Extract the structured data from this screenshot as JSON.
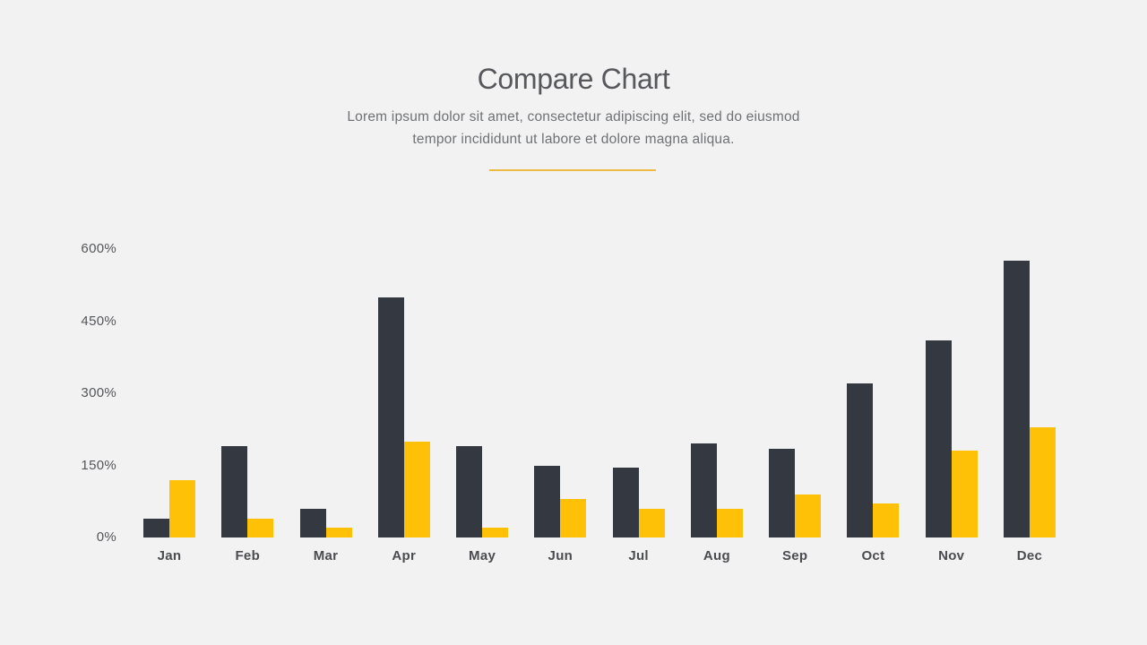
{
  "header": {
    "title": "Compare Chart",
    "subtitle_line1": "Lorem ipsum dolor sit amet, consectetur adipiscing elit, sed do eiusmod",
    "subtitle_line2": "tempor incididunt ut labore et dolore magna aliqua."
  },
  "colors": {
    "background": "#f2f2f3",
    "series1": "#343841",
    "series2": "#fec107",
    "divider": "#ecba45",
    "title_text": "#57585c",
    "subtitle_text": "#6f7174",
    "axis_text": "#55565a",
    "month_text": "#4b4c50"
  },
  "chart_data": {
    "type": "bar",
    "title": "Compare Chart",
    "xlabel": "",
    "ylabel": "",
    "categories": [
      "Jan",
      "Feb",
      "Mar",
      "Apr",
      "May",
      "Jun",
      "Jul",
      "Aug",
      "Sep",
      "Oct",
      "Nov",
      "Dec"
    ],
    "series": [
      {
        "name": "dark",
        "color": "#343841",
        "values": [
          40,
          190,
          60,
          500,
          190,
          150,
          145,
          195,
          185,
          320,
          410,
          575
        ]
      },
      {
        "name": "yellow",
        "color": "#fec107",
        "values": [
          120,
          40,
          20,
          200,
          20,
          80,
          60,
          60,
          90,
          70,
          180,
          230
        ]
      }
    ],
    "ylim": [
      0,
      600
    ],
    "yticks": [
      "600%",
      "450%",
      "300%",
      "150%",
      "0%"
    ],
    "ytick_values": [
      600,
      450,
      300,
      150,
      0
    ],
    "grid": false,
    "legend": "none",
    "unit": "%"
  }
}
